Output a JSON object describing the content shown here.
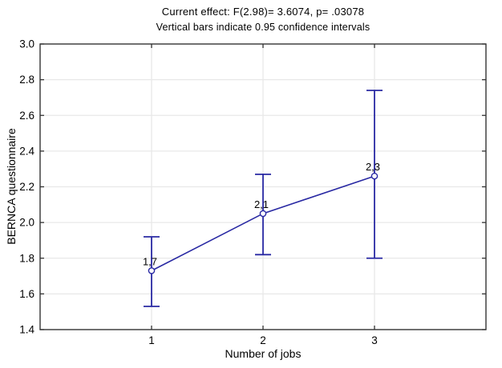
{
  "chart_data": {
    "type": "line",
    "title": "Current effect: F(2.98)= 3.6074, p= .03078",
    "subtitle": "Vertical bars indicate 0.95 confidence intervals",
    "xlabel": "Number of jobs",
    "ylabel": "BERNCA questionnaire",
    "categories": [
      "1",
      "2",
      "3"
    ],
    "series": [
      {
        "name": "BERNCA questionnaire mean",
        "values": [
          1.73,
          2.05,
          2.26
        ],
        "ci_low": [
          1.53,
          1.82,
          1.8
        ],
        "ci_high": [
          1.92,
          2.27,
          2.74
        ],
        "point_labels": [
          "1,7",
          "2,1",
          "2,3"
        ]
      }
    ],
    "ylim": [
      1.4,
      3.0
    ],
    "ytick_labels": [
      "1.4",
      "1.6",
      "1.8",
      "2.0",
      "2.2",
      "2.4",
      "2.6",
      "2.8",
      "3.0"
    ],
    "grid": true,
    "legend_position": "none",
    "marker": "open-circle",
    "colors": {
      "series": "#2929A3",
      "grid": "#E8E8E8",
      "frame": "#333333",
      "text": "#000000",
      "background": "#FFFFFF"
    }
  }
}
